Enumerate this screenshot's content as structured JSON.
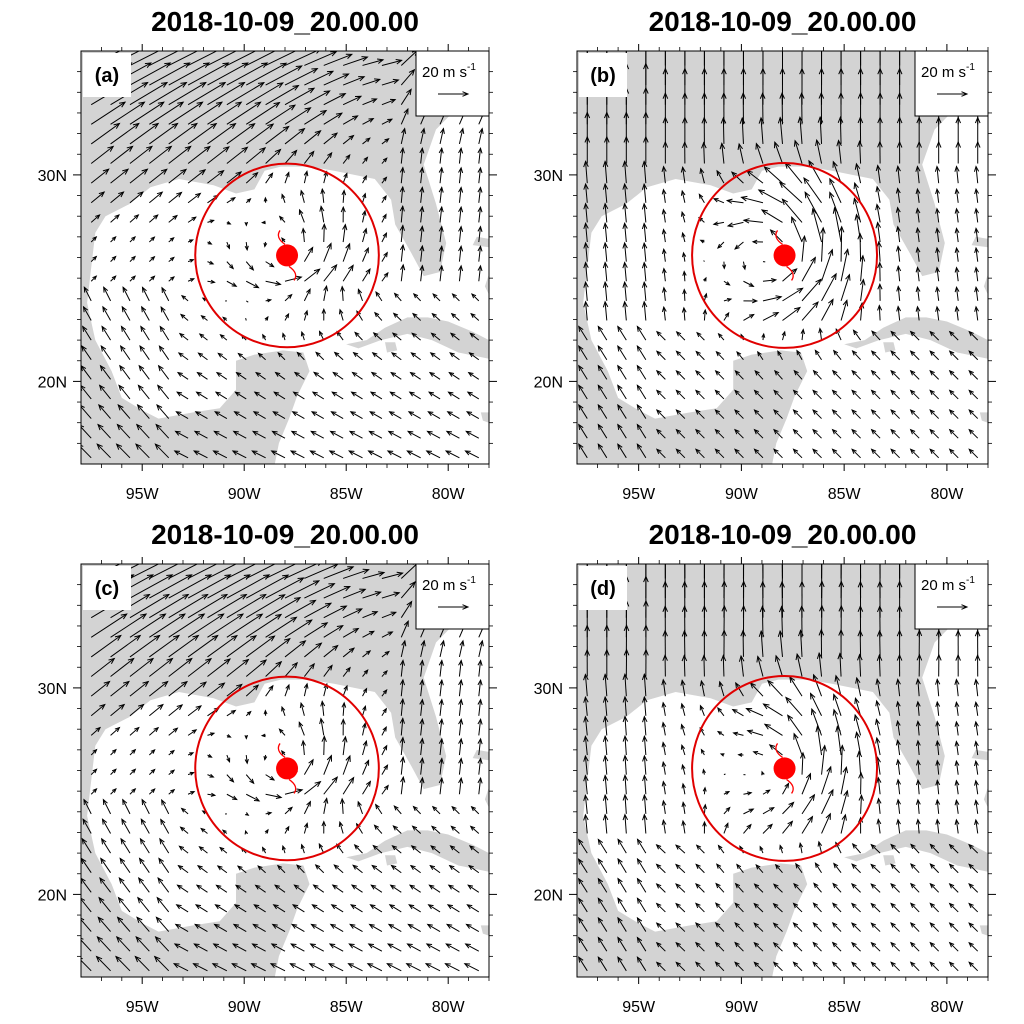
{
  "figure": {
    "layout": "2x2 map panels",
    "colors": {
      "land": "#d3d3d3",
      "ocean": "#ffffff",
      "vectors": "#000000",
      "circle": "#e00000",
      "storm_center": "#ff0000"
    }
  },
  "map": {
    "lon_range": [
      -98,
      -78
    ],
    "lat_range": [
      16,
      36
    ],
    "lon_ticks": [
      {
        "value": -95,
        "label": "95W"
      },
      {
        "value": -90,
        "label": "90W"
      },
      {
        "value": -85,
        "label": "85W"
      },
      {
        "value": -80,
        "label": "80W"
      }
    ],
    "lat_ticks": [
      {
        "value": 30,
        "label": "30N"
      },
      {
        "value": 20,
        "label": "20N"
      }
    ],
    "storm_center": {
      "lon": -87.9,
      "lat": 26.1
    },
    "circle_radius_deg": 4.5,
    "reference_vector": {
      "label": "20 m s",
      "superscript": "-1",
      "speed": 20
    },
    "field": "wind vectors"
  },
  "panels": [
    {
      "id": "a",
      "label": "(a)",
      "title": "2018-10-09_20.00.00",
      "flow": "strong SW-NE jet in northwest, weak cyclonic circulation"
    },
    {
      "id": "b",
      "label": "(b)",
      "title": "2018-10-09_20.00.00",
      "flow": "southerly flow, strong cyclonic circulation"
    },
    {
      "id": "c",
      "label": "(c)",
      "title": "2018-10-09_20.00.00",
      "flow": "strong SW-NE jet in northwest, weak cyclonic circulation"
    },
    {
      "id": "d",
      "label": "(d)",
      "title": "2018-10-09_20.00.00",
      "flow": "southerly flow, moderate irregular circulation"
    }
  ]
}
